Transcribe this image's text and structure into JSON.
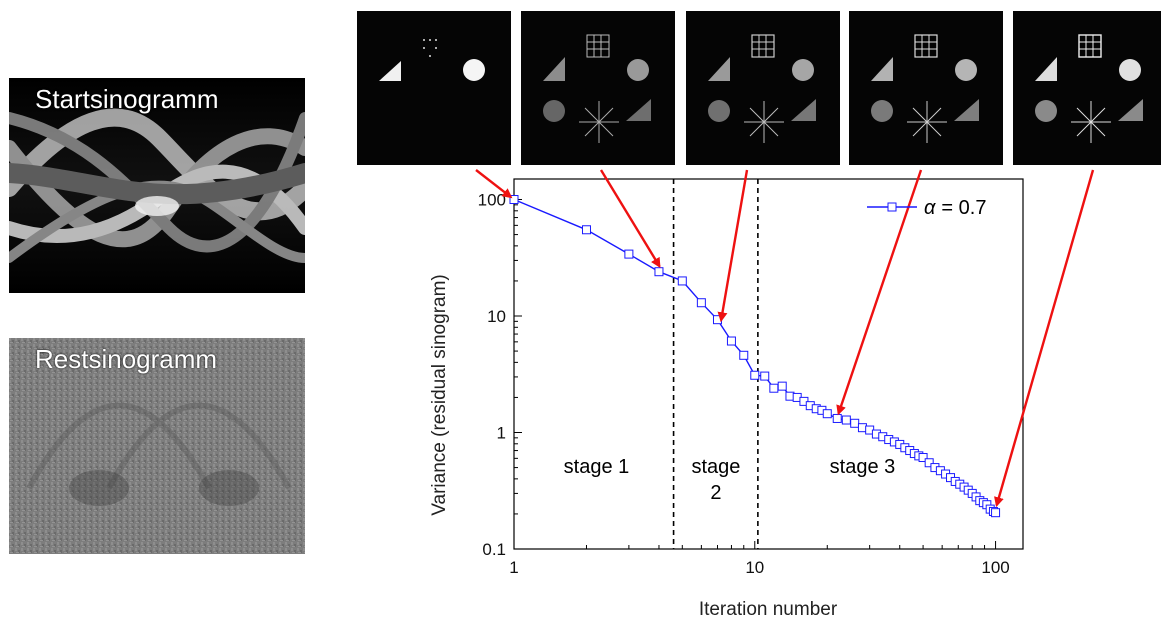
{
  "sinograms": {
    "start_label": "Startsinogramm",
    "rest_label": "Restsinogramm"
  },
  "colors": {
    "series": "#1a1aff",
    "arrows": "#ee1111",
    "stage_lines": "#000000"
  },
  "chart_data": {
    "type": "line",
    "x_scale": "log",
    "y_scale": "log",
    "xlim": [
      1,
      130
    ],
    "ylim": [
      0.1,
      150
    ],
    "xlabel": "Iteration number",
    "ylabel": "Variance (residual sinogram)",
    "x_ticks": [
      "1",
      "10",
      "100"
    ],
    "y_ticks": [
      "0.1",
      "1",
      "10",
      "100"
    ],
    "grid": false,
    "legend": {
      "position": "top-right",
      "prefix": "α",
      "suffix": "= 0.7"
    },
    "stage_boundaries": [
      4.6,
      10.3
    ],
    "stage_labels": [
      {
        "lines": [
          "stage 1"
        ],
        "x": 2.2,
        "y": 0.45
      },
      {
        "lines": [
          "stage",
          "2"
        ],
        "x": 6.9,
        "y": 0.45
      },
      {
        "lines": [
          "stage 3"
        ],
        "x": 28,
        "y": 0.45
      }
    ],
    "series": [
      {
        "marker": "open-square",
        "x": [
          1,
          2,
          3,
          4,
          5,
          6,
          7,
          8,
          9,
          10,
          11,
          12,
          13,
          14,
          15,
          16,
          17,
          18,
          19,
          20,
          22,
          24,
          26,
          28,
          30,
          32,
          34,
          36,
          38,
          40,
          42,
          44,
          46,
          48,
          50,
          53,
          56,
          59,
          62,
          65,
          68,
          71,
          74,
          77,
          80,
          83,
          86,
          89,
          92,
          95,
          98,
          100
        ],
        "y": [
          100,
          55,
          34,
          24,
          20,
          13,
          9.3,
          6.1,
          4.6,
          3.1,
          3.05,
          2.4,
          2.5,
          2.05,
          2.0,
          1.85,
          1.7,
          1.6,
          1.55,
          1.45,
          1.32,
          1.28,
          1.2,
          1.1,
          1.05,
          0.97,
          0.92,
          0.87,
          0.83,
          0.79,
          0.74,
          0.7,
          0.66,
          0.63,
          0.61,
          0.55,
          0.5,
          0.47,
          0.44,
          0.41,
          0.38,
          0.36,
          0.34,
          0.32,
          0.3,
          0.28,
          0.26,
          0.25,
          0.24,
          0.22,
          0.21,
          0.205
        ]
      }
    ],
    "annotations": [
      {
        "type": "arrow",
        "to_x": 1,
        "to_y": 100,
        "from_image": 1
      },
      {
        "type": "arrow",
        "to_x": 4.1,
        "to_y": 25,
        "from_image": 2
      },
      {
        "type": "arrow",
        "to_x": 7.2,
        "to_y": 8.5,
        "from_image": 3
      },
      {
        "type": "arrow",
        "to_x": 22,
        "to_y": 1.35,
        "from_image": 4
      },
      {
        "type": "arrow",
        "to_x": 100,
        "to_y": 0.22,
        "from_image": 5
      }
    ]
  }
}
